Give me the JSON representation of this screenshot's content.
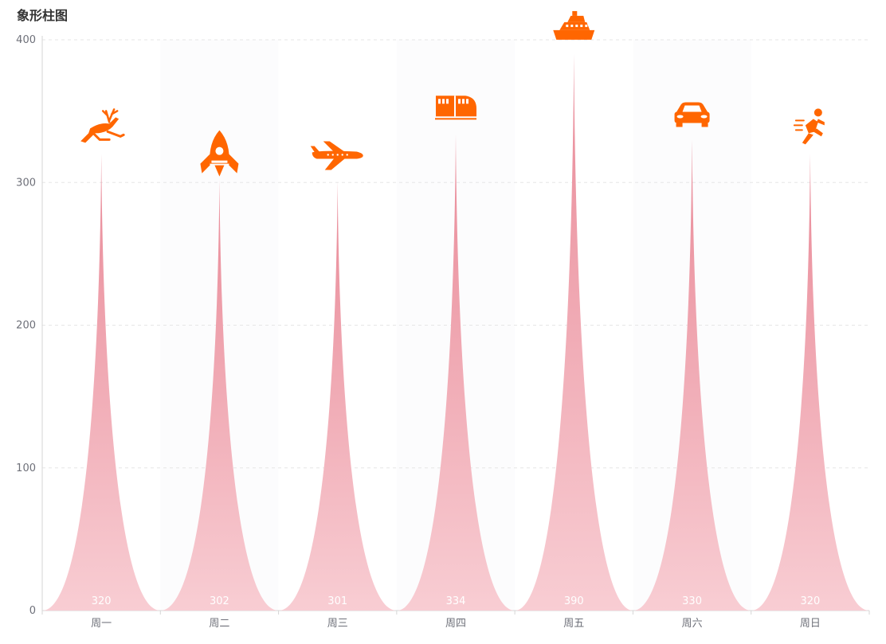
{
  "chart_data": {
    "type": "bar",
    "title": "象形柱图",
    "categories": [
      "周一",
      "周二",
      "周三",
      "周四",
      "周五",
      "周六",
      "周日"
    ],
    "values": [
      320,
      302,
      301,
      334,
      390,
      330,
      320
    ],
    "ylim": [
      0,
      400
    ],
    "yticks": [
      0,
      100,
      200,
      300,
      400
    ],
    "grid": true,
    "symbols": [
      "deer-icon",
      "rocket-icon",
      "airplane-icon",
      "train-icon",
      "ship-icon",
      "car-icon",
      "runner-icon"
    ],
    "colors": {
      "bar_top": "#e98a98",
      "bar_bottom": "#f8cdd3",
      "icon": "#ff6600",
      "label": "#ffffff"
    }
  }
}
